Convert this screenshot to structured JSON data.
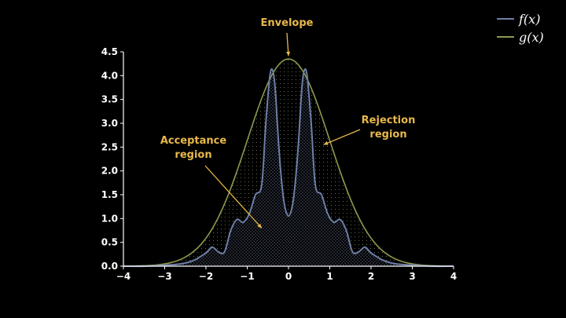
{
  "chart_data": {
    "type": "line",
    "title": "",
    "xlabel": "",
    "ylabel": "",
    "xlim": [
      -4,
      4
    ],
    "ylim": [
      0,
      4.5
    ],
    "xticks": [
      "−4",
      "−3",
      "−2",
      "−1",
      "0",
      "1",
      "2",
      "3",
      "4"
    ],
    "xtick_values": [
      -4,
      -3,
      -2,
      -1,
      0,
      1,
      2,
      3,
      4
    ],
    "yticks": [
      "0.0",
      "0.5",
      "1.0",
      "1.5",
      "2.0",
      "2.5",
      "3.0",
      "3.5",
      "4.0",
      "4.5"
    ],
    "ytick_values": [
      0,
      0.5,
      1.0,
      1.5,
      2.0,
      2.5,
      3.0,
      3.5,
      4.0,
      4.5
    ],
    "grid": false,
    "legend_position": "top-right",
    "series": [
      {
        "name": "f(x)",
        "color": "#6d7fa8",
        "x": [
          -4,
          -3.5,
          -3,
          -2.6,
          -2.3,
          -2.0,
          -1.85,
          -1.7,
          -1.55,
          -1.4,
          -1.25,
          -1.1,
          -0.95,
          -0.8,
          -0.65,
          -0.55,
          -0.45,
          -0.38,
          -0.32,
          -0.25,
          -0.18,
          -0.1,
          0,
          0.1,
          0.18,
          0.25,
          0.32,
          0.38,
          0.45,
          0.55,
          0.65,
          0.8,
          0.95,
          1.1,
          1.25,
          1.4,
          1.55,
          1.7,
          1.85,
          2.0,
          2.3,
          2.6,
          3,
          3.5,
          4
        ],
        "y": [
          0,
          0,
          0.02,
          0.05,
          0.12,
          0.28,
          0.4,
          0.3,
          0.3,
          0.75,
          0.98,
          0.92,
          1.1,
          1.5,
          1.7,
          3.0,
          4.0,
          4.1,
          3.7,
          2.7,
          1.9,
          1.3,
          1.05,
          1.3,
          1.9,
          2.7,
          3.7,
          4.1,
          4.0,
          3.0,
          1.7,
          1.5,
          1.1,
          0.92,
          0.98,
          0.75,
          0.3,
          0.3,
          0.4,
          0.28,
          0.12,
          0.05,
          0.02,
          0,
          0
        ]
      },
      {
        "name": "g(x)",
        "color": "#8d9a4c",
        "formula": "4.35 * exp(-x^2 / 2)",
        "amplitude": 4.35,
        "sigma": 1.0
      }
    ],
    "annotations": [
      {
        "text": "Envelope",
        "point_x": 0,
        "point_y": 4.38
      },
      {
        "text": "Rejection\nregion",
        "point_x": 0.85,
        "point_y": 2.55
      },
      {
        "text": "Acceptance\nregion",
        "point_x": -0.65,
        "point_y": 0.8
      }
    ],
    "legend": [
      {
        "label": "f(x)",
        "color": "#6d7fa8"
      },
      {
        "label": "g(x)",
        "color": "#8d9a4c"
      }
    ],
    "colors": {
      "background": "#000000",
      "axis": "#ffffff",
      "annotation": "#e8b84a"
    }
  }
}
